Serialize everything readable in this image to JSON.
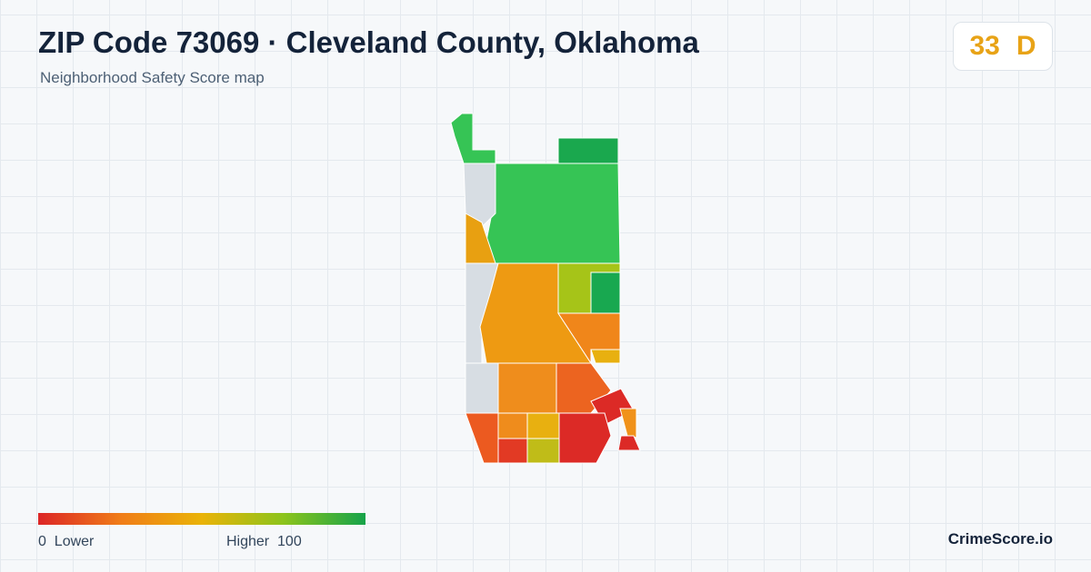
{
  "header": {
    "title": "ZIP Code 73069 · Cleveland County, Oklahoma",
    "subtitle": "Neighborhood Safety Score map"
  },
  "score": {
    "value": "33",
    "grade": "D"
  },
  "legend": {
    "min": "0",
    "min_label": "Lower",
    "max_label": "Higher",
    "max": "100"
  },
  "footer": {
    "brand": "CrimeScore.io"
  }
}
